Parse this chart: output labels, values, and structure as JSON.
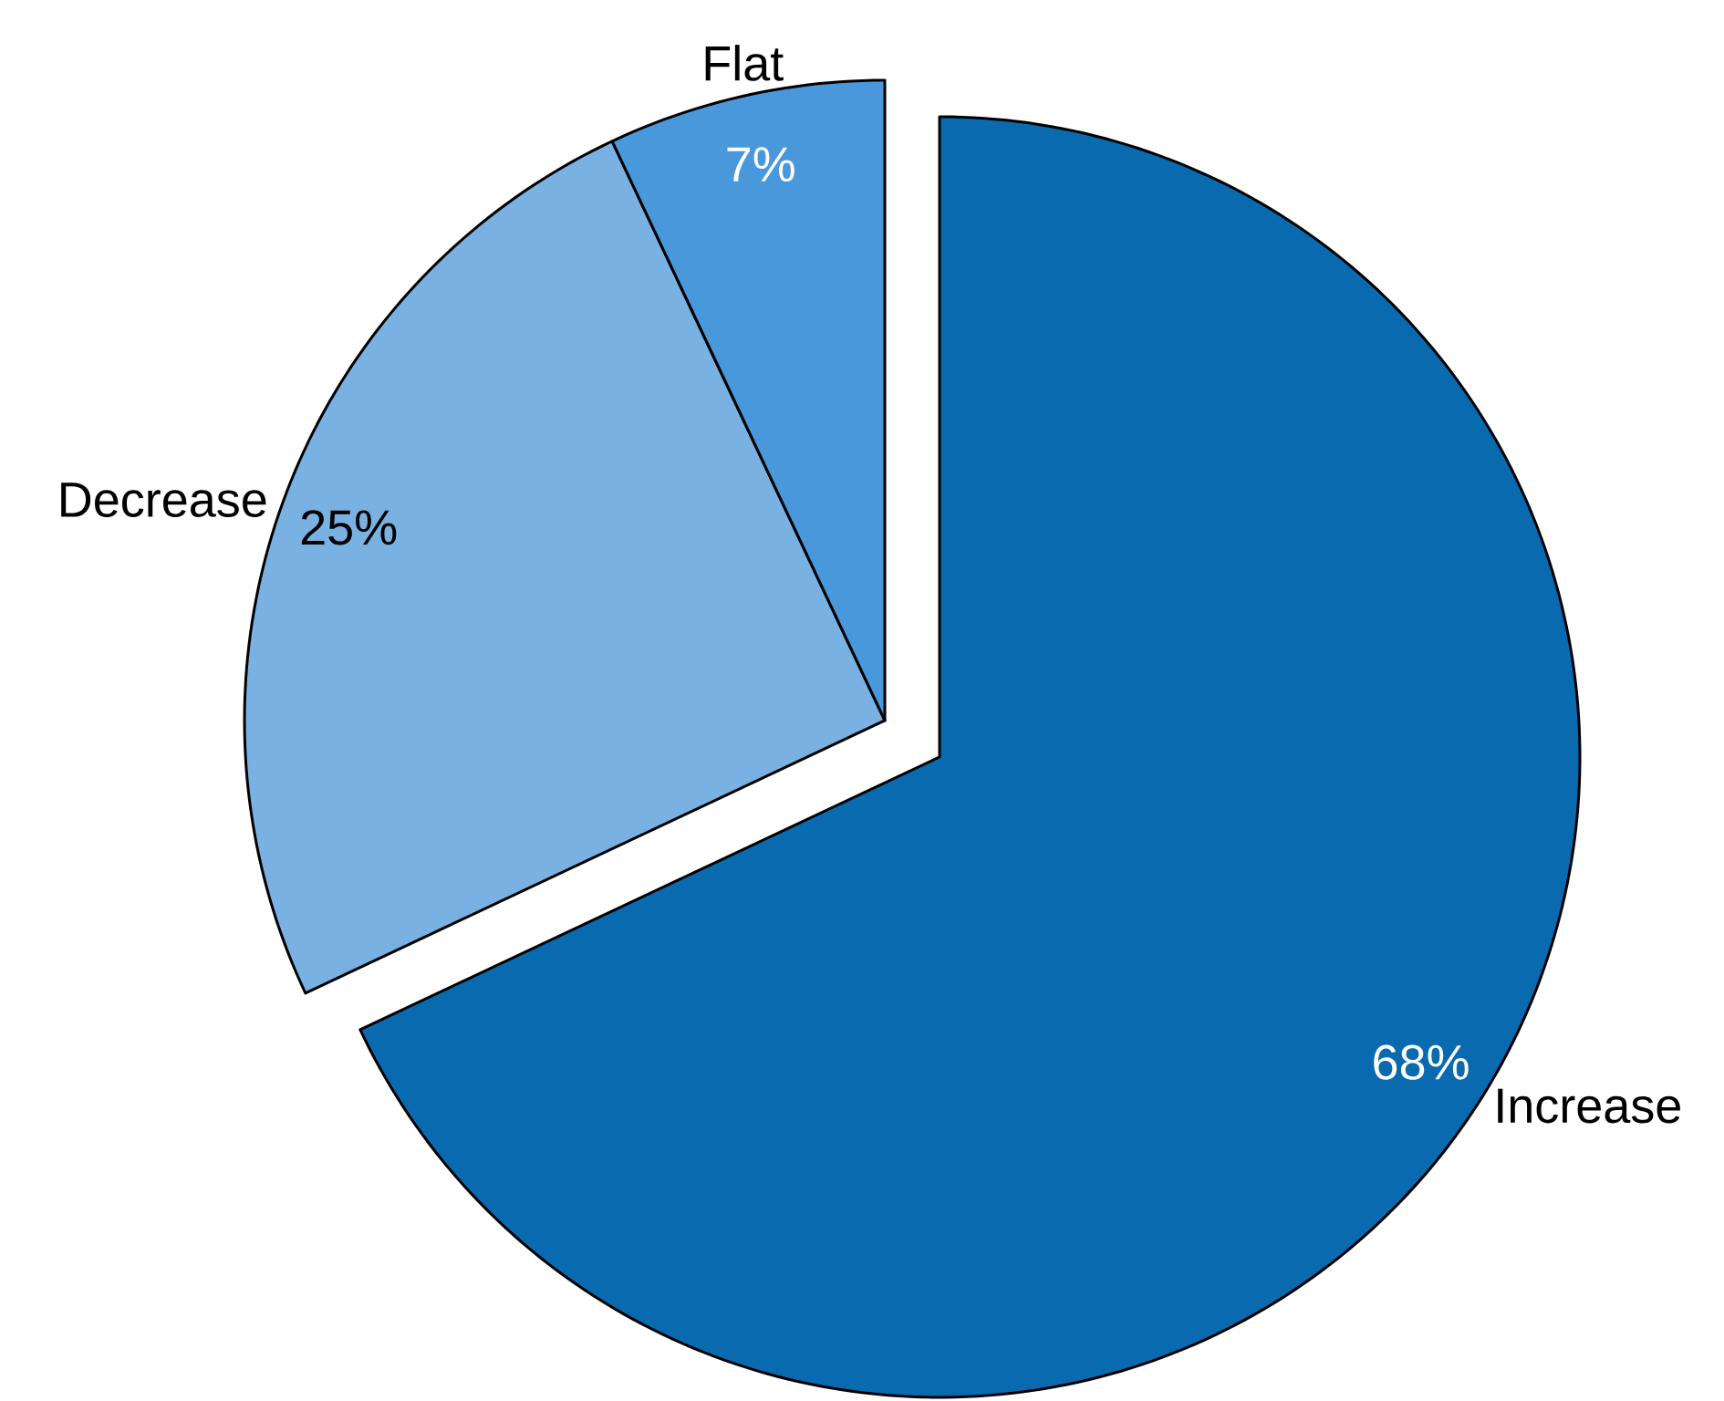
{
  "chart_data": {
    "type": "pie",
    "categories": [
      "Increase",
      "Decrease",
      "Flat"
    ],
    "values": [
      68,
      25,
      7
    ],
    "colors": [
      "#0a6ab0",
      "#79b1e2",
      "#4a98dc"
    ],
    "value_labels": [
      "68%",
      "25%",
      "7%"
    ]
  }
}
